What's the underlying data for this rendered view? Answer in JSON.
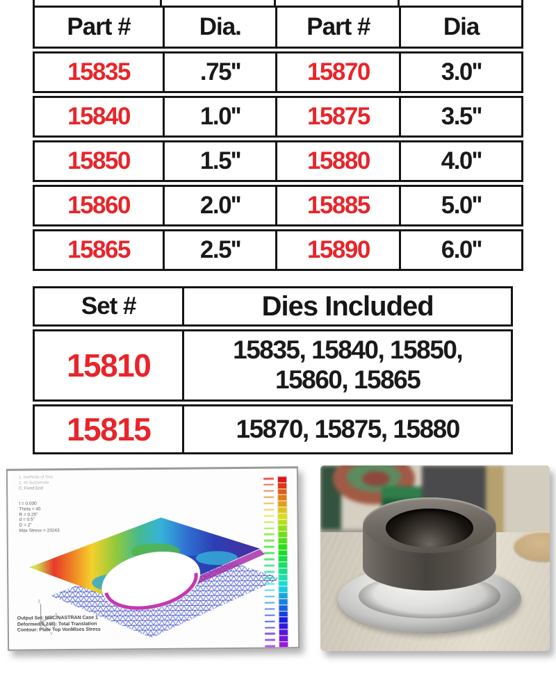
{
  "colors": {
    "accent_red": "#e8252a",
    "text_black": "#1a1a1a",
    "table_border": "#141414"
  },
  "parts_table": {
    "headers": [
      "Part #",
      "Dia.",
      "Part #",
      "Dia"
    ],
    "rows": [
      [
        "15835",
        ".75''",
        "15870",
        "3.0''"
      ],
      [
        "15840",
        "1.0''",
        "15875",
        "3.5''"
      ],
      [
        "15850",
        "1.5''",
        "15880",
        "4.0''"
      ],
      [
        "15860",
        "2.0''",
        "15885",
        "5.0''"
      ],
      [
        "15865",
        "2.5''",
        "15890",
        "6.0''"
      ]
    ]
  },
  "sets_table": {
    "headers": [
      "Set #",
      "Dies Included"
    ],
    "rows": [
      {
        "set_number": "15810",
        "dies_line1": "15835, 15840, 15850,",
        "dies_line2": "15860, 15865"
      },
      {
        "set_number": "15815",
        "dies_line1": "15870, 15875, 15880",
        "dies_line2": ""
      }
    ]
  },
  "fea_panel": {
    "view_lines": [
      "1: methods of Test",
      "1: 45 Buttonhole",
      "C: Fixed End"
    ],
    "param_lines": [
      "t = 0.030",
      "Theta = 45",
      "R = 0.25\"",
      "d = 0.5\"",
      "D = 2\"",
      "Max Stress = 23243"
    ],
    "caption_lines": [
      "Output Set: MSC/NASTRAN Case 1",
      "Deformed(0.248): Total Translation",
      "Contour: Plate Top VonMises Stress"
    ],
    "axis_labels": {
      "z": "Z",
      "x": "X",
      "y": "Y"
    }
  }
}
